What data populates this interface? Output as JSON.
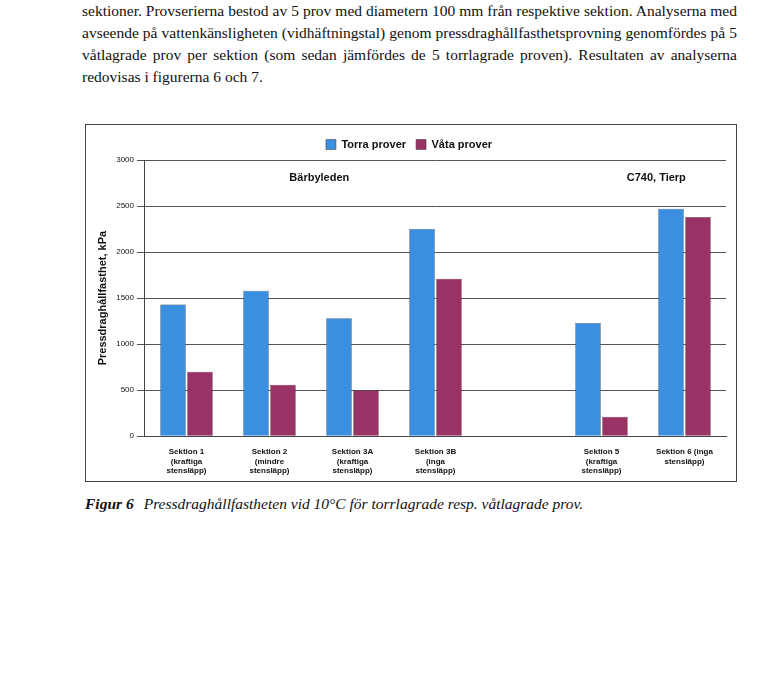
{
  "text": "sektioner. Provserierna bestod av 5 prov med diametern 100 mm från respektive sektion. Analyserna med avseende på vattenkänsligheten (vidhäftningstal) genom pressdraghållfasthetsprovning genomfördes på 5 våtlagrade prov per sektion (som sedan jämfördes de 5 torrlagrade proven). Resultaten av analyserna redovisas i figurerna 6 och 7.",
  "chart_data": {
    "type": "bar",
    "y_label": "Pressdraghållfasthet, kPa",
    "annotations": [
      "Bärbyleden",
      "C740, Tierp"
    ],
    "categories": [
      [
        "Sektion 1",
        "(kraftiga",
        "stensläpp)"
      ],
      [
        "Sektion 2",
        "(mindre",
        "stensläpp)"
      ],
      [
        "Sektion 3A",
        "(kraftiga",
        "stensläpp)"
      ],
      [
        "Sektion 3B",
        "(inga",
        "stensläpp)"
      ],
      null,
      [
        "Sektion 5",
        "(kraftiga",
        "stensläpp)"
      ],
      [
        "Sektion 6 (inga",
        "stensläpp)"
      ]
    ],
    "series": [
      {
        "name": "Torra prover",
        "color": "#3b8fe0",
        "values": [
          1430,
          1580,
          1280,
          2250,
          null,
          1230,
          2470
        ]
      },
      {
        "name": "Våta prover",
        "color": "#993366",
        "values": [
          700,
          560,
          500,
          1710,
          null,
          210,
          2380
        ]
      }
    ],
    "ylim": [
      0,
      3000
    ],
    "yticks": [
      0,
      500,
      1000,
      1500,
      2000,
      2500,
      3000
    ],
    "grid": true,
    "legend": "top"
  },
  "caption": {
    "label": "Figur 6",
    "text": "Pressdraghållfastheten vid 10°C för torrlagrade resp. våtlagrade prov."
  }
}
